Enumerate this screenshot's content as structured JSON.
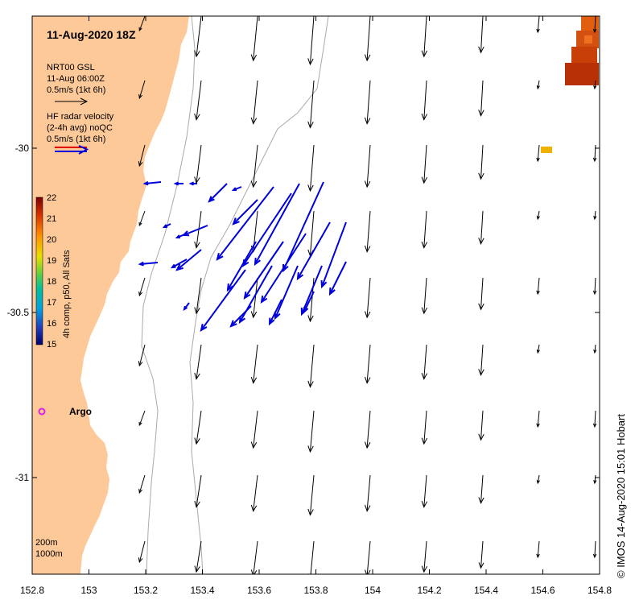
{
  "title": "11-Aug-2020 18Z",
  "legend": {
    "nrt_lines": [
      "NRT00 GSL",
      "11-Aug 06:00Z",
      "0.5m/s (1kt 6h)"
    ],
    "hf_lines": [
      "HF radar velocity",
      "(2-4h avg) noQC",
      "0.5m/s (1kt 6h)"
    ]
  },
  "colorbar": {
    "label": "4h comp, p50, All Sats",
    "ticks": [
      "22",
      "21",
      "20",
      "19",
      "18",
      "17",
      "16",
      "15"
    ],
    "min": 15,
    "max": 22
  },
  "axes": {
    "x_ticks": [
      "152.8",
      "153",
      "153.2",
      "153.4",
      "153.6",
      "153.8",
      "154",
      "154.2",
      "154.4",
      "154.6",
      "154.8"
    ],
    "y_ticks": [
      "-30",
      "-30.5",
      "-31"
    ],
    "xlim": [
      152.8,
      154.8
    ],
    "ylim": [
      -31.3,
      -29.6
    ]
  },
  "depth_legend": [
    "200m",
    "1000m"
  ],
  "argo": {
    "label": "Argo",
    "lon": 152.83,
    "lat": -30.79,
    "color": "#e020e0"
  },
  "credit": "© IMOS 14-Aug-2020 15:01 Hobart",
  "colors": {
    "land": "#fdc999",
    "hf_arrow": "#0000dd",
    "nrt_arrow": "#000000",
    "depth_contour": "#aaaaaa"
  }
}
